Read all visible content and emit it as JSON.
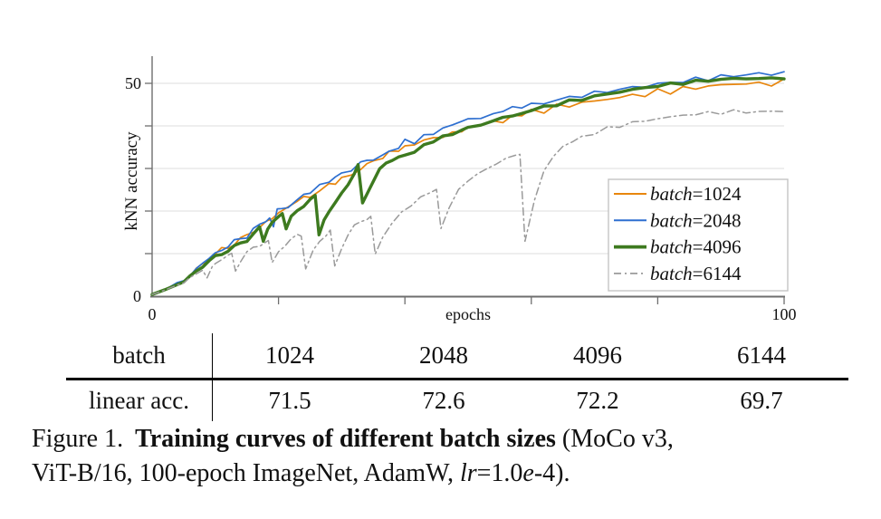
{
  "chart_data": {
    "type": "line",
    "title": "",
    "xlabel": "epochs",
    "ylabel": "kNN accuracy",
    "xlim": [
      0,
      100
    ],
    "ylim": [
      0,
      55
    ],
    "grid": "horizontal",
    "x_ticks": [
      {
        "v": 0,
        "label": "0"
      },
      {
        "v": 20,
        "label": ""
      },
      {
        "v": 40,
        "label": ""
      },
      {
        "v": 60,
        "label": ""
      },
      {
        "v": 80,
        "label": ""
      },
      {
        "v": 100,
        "label": "100"
      }
    ],
    "y_ticks": [
      {
        "v": 0,
        "label": "0"
      },
      {
        "v": 10,
        "label": ""
      },
      {
        "v": 20,
        "label": ""
      },
      {
        "v": 30,
        "label": ""
      },
      {
        "v": 40,
        "label": ""
      },
      {
        "v": 50,
        "label": "50"
      }
    ],
    "legend_position": "lower right inside",
    "legend_prefix": "batch",
    "series": [
      {
        "name": "batch=1024",
        "value": "1024",
        "color": "#E8860D",
        "style": "solid",
        "width": 1.7,
        "jitter": 0.85,
        "points": [
          [
            0,
            0.4
          ],
          [
            2,
            1.5
          ],
          [
            4,
            2.9
          ],
          [
            5,
            3.6
          ],
          [
            6,
            4.9
          ],
          [
            7,
            6.2
          ],
          [
            8,
            7.5
          ],
          [
            9,
            8.7
          ],
          [
            10,
            9.9
          ],
          [
            11,
            10.7
          ],
          [
            12,
            11.5
          ],
          [
            13,
            12.6
          ],
          [
            14,
            13.4
          ],
          [
            15,
            14.2
          ],
          [
            16,
            15.3
          ],
          [
            17,
            16.1
          ],
          [
            18,
            17.5
          ],
          [
            19,
            18.3
          ],
          [
            20,
            19.3
          ],
          [
            21.5,
            20.6
          ],
          [
            23,
            22.1
          ],
          [
            24,
            22.8
          ],
          [
            25,
            23.7
          ],
          [
            26.5,
            24.8
          ],
          [
            28,
            26.2
          ],
          [
            29,
            27.1
          ],
          [
            30,
            27.9
          ],
          [
            31.5,
            28.9
          ],
          [
            33,
            30.1
          ],
          [
            34,
            30.9
          ],
          [
            35,
            31.7
          ],
          [
            36.5,
            32.2
          ],
          [
            37.5,
            33.3
          ],
          [
            39,
            34.2
          ],
          [
            40,
            34.8
          ],
          [
            41.5,
            35.3
          ],
          [
            43,
            36.4
          ],
          [
            44.5,
            37.1
          ],
          [
            46,
            37.8
          ],
          [
            47.5,
            38.6
          ],
          [
            49,
            39.3
          ],
          [
            50,
            39.7
          ],
          [
            52,
            40.4
          ],
          [
            54,
            41.1
          ],
          [
            55.5,
            41.6
          ],
          [
            57,
            42.2
          ],
          [
            58.5,
            42.7
          ],
          [
            60,
            43.2
          ],
          [
            62,
            43.8
          ],
          [
            64,
            44.4
          ],
          [
            66,
            44.9
          ],
          [
            68,
            45.4
          ],
          [
            70,
            45.8
          ],
          [
            72,
            46.3
          ],
          [
            74,
            46.7
          ],
          [
            76,
            47.1
          ],
          [
            78,
            47.5
          ],
          [
            80,
            47.9
          ],
          [
            82,
            48.3
          ],
          [
            84,
            48.6
          ],
          [
            86,
            49.0
          ],
          [
            88,
            49.3
          ],
          [
            90,
            49.6
          ],
          [
            92,
            49.8
          ],
          [
            94,
            50.0
          ],
          [
            96,
            49.8
          ],
          [
            98,
            50.1
          ],
          [
            100,
            50.2
          ]
        ]
      },
      {
        "name": "batch=2048",
        "value": "2048",
        "color": "#2E6FD0",
        "style": "solid",
        "width": 1.7,
        "jitter": 0.8,
        "points": [
          [
            0,
            0.4
          ],
          [
            2,
            1.6
          ],
          [
            4,
            3.0
          ],
          [
            5,
            3.7
          ],
          [
            6,
            5.0
          ],
          [
            7,
            6.4
          ],
          [
            8,
            7.7
          ],
          [
            9,
            8.9
          ],
          [
            10,
            10.1
          ],
          [
            11,
            10.9
          ],
          [
            12,
            11.7
          ],
          [
            13,
            12.8
          ],
          [
            14,
            13.5
          ],
          [
            15,
            14.3
          ],
          [
            16,
            15.7
          ],
          [
            17,
            16.2
          ],
          [
            18,
            18.0
          ],
          [
            18.6,
            18.5
          ],
          [
            19.2,
            16.3,
            1
          ],
          [
            19.8,
            19.8
          ],
          [
            20.5,
            20.6
          ],
          [
            21.5,
            21.2
          ],
          [
            23,
            22.7
          ],
          [
            24,
            23.5
          ],
          [
            25,
            24.3
          ],
          [
            26.5,
            25.5
          ],
          [
            28,
            26.9
          ],
          [
            29,
            27.9
          ],
          [
            30,
            28.7
          ],
          [
            31.5,
            29.7
          ],
          [
            33,
            30.9
          ],
          [
            34,
            31.9
          ],
          [
            35,
            32.7
          ],
          [
            36.5,
            33.1
          ],
          [
            37.5,
            34.2
          ],
          [
            39,
            35.2
          ],
          [
            40,
            36.3
          ],
          [
            41.5,
            36.4
          ],
          [
            43,
            37.9
          ],
          [
            44.5,
            38.6
          ],
          [
            46,
            39.4
          ],
          [
            47.5,
            40.1
          ],
          [
            49,
            40.8
          ],
          [
            50,
            41.3
          ],
          [
            52,
            42.0
          ],
          [
            54,
            42.9
          ],
          [
            55.5,
            43.3
          ],
          [
            57,
            43.9
          ],
          [
            58.5,
            44.3
          ],
          [
            60,
            44.9
          ],
          [
            62,
            45.4
          ],
          [
            64,
            46.1
          ],
          [
            66,
            46.6
          ],
          [
            68,
            47.2
          ],
          [
            70,
            47.7
          ],
          [
            72,
            48.1
          ],
          [
            74,
            48.6
          ],
          [
            76,
            49.0
          ],
          [
            78,
            49.4
          ],
          [
            80,
            49.8
          ],
          [
            82,
            50.2
          ],
          [
            84,
            50.5
          ],
          [
            86,
            50.9
          ],
          [
            88,
            51.2
          ],
          [
            90,
            51.5
          ],
          [
            92,
            51.8
          ],
          [
            94,
            52.0
          ],
          [
            96,
            52.3
          ],
          [
            98,
            52.1
          ],
          [
            100,
            52.7
          ]
        ]
      },
      {
        "name": "batch=4096",
        "value": "4096",
        "color": "#3D7A1F",
        "style": "solid",
        "width": 3.4,
        "jitter": 0.45,
        "points": [
          [
            0,
            0.4
          ],
          [
            2,
            1.5
          ],
          [
            4,
            2.8
          ],
          [
            5,
            3.4
          ],
          [
            6,
            4.6
          ],
          [
            7,
            5.9
          ],
          [
            8,
            7.1
          ],
          [
            9,
            8.2
          ],
          [
            10,
            9.2
          ],
          [
            11,
            10.0
          ],
          [
            12,
            10.8
          ],
          [
            13,
            11.6
          ],
          [
            14,
            12.4
          ],
          [
            15,
            13.1
          ],
          [
            16,
            14.6
          ],
          [
            17,
            16.2
          ],
          [
            17.6,
            12.9,
            1
          ],
          [
            18.3,
            15.9
          ],
          [
            19,
            17.3
          ],
          [
            20,
            18.7
          ],
          [
            20.6,
            19.3
          ],
          [
            21.2,
            15.8,
            1
          ],
          [
            22,
            18.6
          ],
          [
            23,
            19.9
          ],
          [
            24,
            21.4
          ],
          [
            25,
            22.9
          ],
          [
            25.8,
            23.4
          ],
          [
            26.4,
            14.4,
            1
          ],
          [
            27.2,
            17.8
          ],
          [
            28,
            20.3
          ],
          [
            29,
            21.9
          ],
          [
            30,
            23.9
          ],
          [
            31,
            26.4
          ],
          [
            32,
            29.0
          ],
          [
            32.6,
            30.5
          ],
          [
            33.3,
            21.9,
            1
          ],
          [
            34.5,
            25.9
          ],
          [
            36,
            29.9
          ],
          [
            37,
            31.3
          ],
          [
            38,
            31.9
          ],
          [
            39,
            32.5
          ],
          [
            40,
            33.2
          ],
          [
            41.5,
            34.1
          ],
          [
            43,
            35.3
          ],
          [
            44.5,
            36.3
          ],
          [
            46,
            37.2
          ],
          [
            47.5,
            38.1
          ],
          [
            49,
            38.9
          ],
          [
            50,
            39.4
          ],
          [
            52,
            40.3
          ],
          [
            54,
            41.2
          ],
          [
            55.5,
            41.8
          ],
          [
            57,
            42.5
          ],
          [
            58.5,
            43.1
          ],
          [
            60,
            43.7
          ],
          [
            62,
            44.4
          ],
          [
            64,
            45.1
          ],
          [
            66,
            45.7
          ],
          [
            68,
            46.3
          ],
          [
            70,
            46.9
          ],
          [
            72,
            47.5
          ],
          [
            74,
            48.0
          ],
          [
            76,
            48.5
          ],
          [
            78,
            49.0
          ],
          [
            80,
            49.4
          ],
          [
            82,
            49.8
          ],
          [
            84,
            50.1
          ],
          [
            86,
            50.4
          ],
          [
            88,
            50.7
          ],
          [
            90,
            50.9
          ],
          [
            92,
            51.1
          ],
          [
            94,
            51.2
          ],
          [
            96,
            51.0
          ],
          [
            98,
            51.3
          ],
          [
            100,
            51.2
          ]
        ]
      },
      {
        "name": "batch=6144",
        "value": "6144",
        "color": "#9A9A9A",
        "style": "dashdot",
        "width": 1.5,
        "jitter": 0.5,
        "points": [
          [
            0,
            0.4
          ],
          [
            2,
            1.4
          ],
          [
            4,
            2.7
          ],
          [
            5,
            3.2
          ],
          [
            6,
            4.3
          ],
          [
            7,
            5.2
          ],
          [
            8,
            6.2
          ],
          [
            8.7,
            4.3,
            1
          ],
          [
            9.5,
            6.6
          ],
          [
            10,
            7.7
          ],
          [
            11,
            8.6
          ],
          [
            12,
            9.4
          ],
          [
            12.6,
            9.8
          ],
          [
            13.2,
            5.9,
            1
          ],
          [
            14,
            8.4
          ],
          [
            15,
            10.2
          ],
          [
            16,
            11.2
          ],
          [
            17,
            12.1
          ],
          [
            18,
            12.9
          ],
          [
            18.4,
            13.2
          ],
          [
            19,
            7.9,
            1
          ],
          [
            20,
            10.4
          ],
          [
            21,
            12.2
          ],
          [
            22,
            13.4
          ],
          [
            23,
            14.2
          ],
          [
            23.6,
            14.5
          ],
          [
            24.3,
            6.4,
            1
          ],
          [
            25.5,
            10.4
          ],
          [
            26.5,
            12.9
          ],
          [
            27.5,
            14.6
          ],
          [
            28.2,
            15.3
          ],
          [
            28.9,
            7.1,
            1
          ],
          [
            30,
            11.4
          ],
          [
            31,
            14.4
          ],
          [
            32,
            16.4
          ],
          [
            33,
            17.6
          ],
          [
            34,
            18.4
          ],
          [
            34.6,
            18.8
          ],
          [
            35.3,
            9.9,
            1
          ],
          [
            36.5,
            13.9
          ],
          [
            38,
            17.4
          ],
          [
            39.5,
            19.9
          ],
          [
            41,
            21.6
          ],
          [
            42.5,
            23.1
          ],
          [
            44,
            24.4
          ],
          [
            45,
            25.1
          ],
          [
            45.7,
            15.9,
            1
          ],
          [
            47,
            20.9
          ],
          [
            48.5,
            24.9
          ],
          [
            50,
            27.4
          ],
          [
            51.5,
            28.9
          ],
          [
            53,
            30.1
          ],
          [
            54.5,
            31.1
          ],
          [
            56,
            32.1
          ],
          [
            57.5,
            33.1
          ],
          [
            58.2,
            33.4
          ],
          [
            59,
            12.9,
            1
          ],
          [
            60.5,
            22.9
          ],
          [
            62,
            29.4
          ],
          [
            63.5,
            33.3
          ],
          [
            65,
            35.1
          ],
          [
            66.5,
            36.3
          ],
          [
            68,
            37.3
          ],
          [
            70,
            38.4
          ],
          [
            72,
            39.3
          ],
          [
            74,
            40.1
          ],
          [
            76,
            40.7
          ],
          [
            78,
            41.2
          ],
          [
            80,
            41.7
          ],
          [
            82,
            42.1
          ],
          [
            84,
            42.5
          ],
          [
            86,
            42.8
          ],
          [
            88,
            43.0
          ],
          [
            90,
            43.2
          ],
          [
            92,
            43.3
          ],
          [
            94,
            43.4
          ],
          [
            96,
            43.2
          ],
          [
            98,
            43.5
          ],
          [
            100,
            43.4
          ]
        ]
      }
    ]
  },
  "table": {
    "header_label": "batch",
    "row_label": "linear acc.",
    "columns": [
      "1024",
      "2048",
      "4096",
      "6144"
    ],
    "values": [
      "71.5",
      "72.6",
      "72.2",
      "69.7"
    ]
  },
  "caption": {
    "figure_label": "Figure 1.",
    "bold_text": "Training curves of different batch sizes",
    "after_bold": " (MoCo v3,",
    "line2_text": "ViT-B/16, 100-epoch ImageNet, AdamW, ",
    "lr_italic": "lr",
    "after_lr": "=1.0",
    "e_italic": "e",
    "tail": "-4)."
  },
  "colors": {
    "grid": "#dcdcdc",
    "axis": "#6e6e6e",
    "text": "#111111",
    "legend_border": "#c4c4c4",
    "legend_bg": "#ffffff"
  }
}
